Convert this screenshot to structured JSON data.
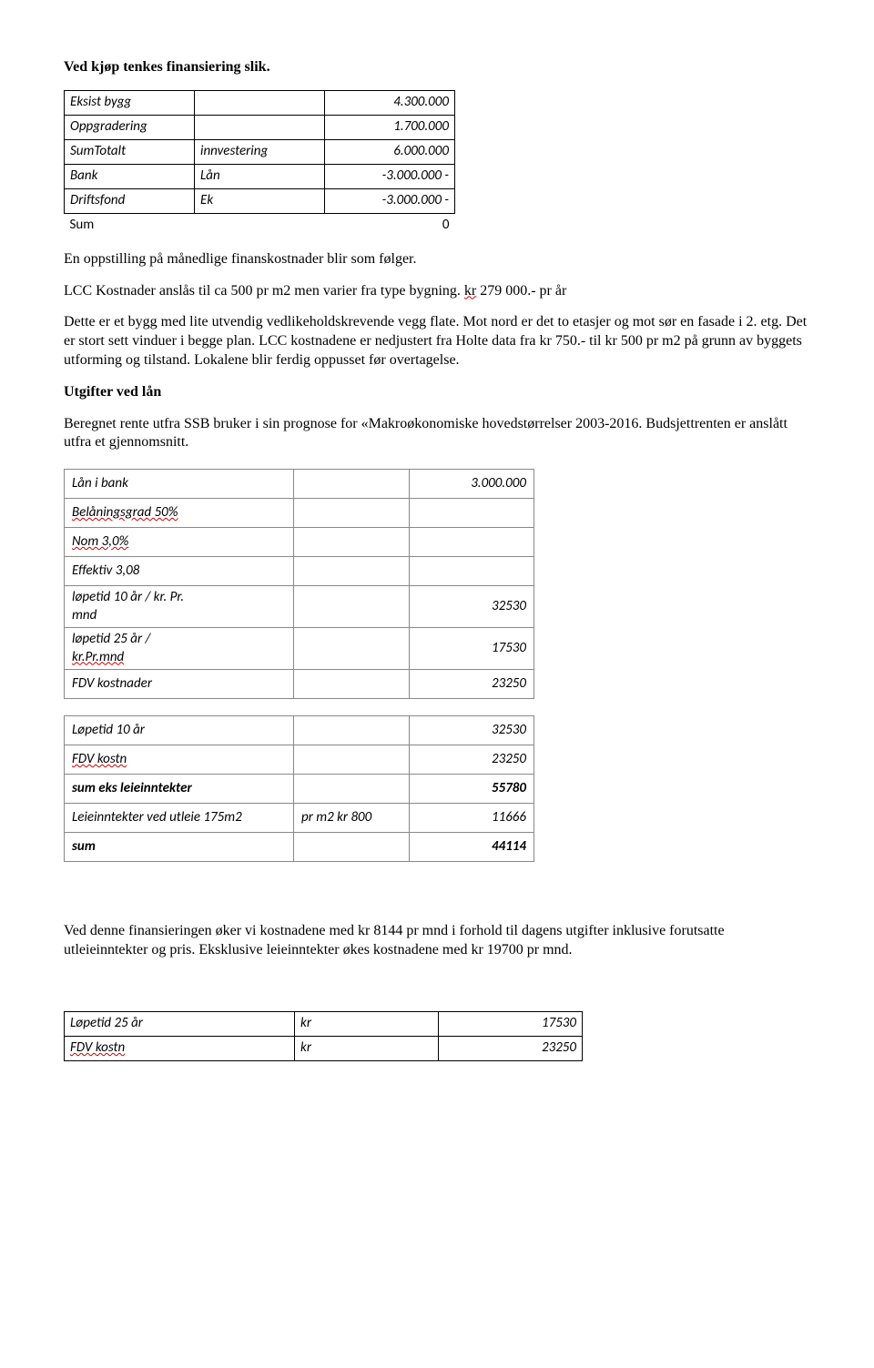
{
  "heading1": "Ved kjøp tenkes finansiering slik.",
  "financing": {
    "rows": [
      {
        "c0": "Eksist bygg",
        "c1": "",
        "c2": "4.300.000",
        "italic": true
      },
      {
        "c0": "Oppgradering",
        "c1": "",
        "c2": "1.700.000",
        "italic": true
      },
      {
        "c0": "SumTotalt",
        "c1": "innvestering",
        "c2": "6.000.000",
        "italic": true
      },
      {
        "c0": "Bank",
        "c1": "Lån",
        "c2": "-3.000.000 -",
        "italic": true
      },
      {
        "c0": "Driftsfond",
        "c1": "Ek",
        "c2": "-3.000.000 -",
        "italic": true
      }
    ],
    "sum_row": {
      "c0": "Sum",
      "c1": "",
      "c2": "0"
    }
  },
  "para1": "En oppstilling på månedlige finanskostnader blir som følger.",
  "para2_pre": "LCC Kostnader anslås til ca 500 pr m2 men varier fra type bygning. ",
  "para2_wavy": "kr",
  "para2_post": " 279 000.- pr år",
  "para3": "Dette er et bygg med lite utvendig vedlikeholdskrevende vegg flate. Mot nord er det to etasjer og mot sør en fasade i  2. etg. Det er stort sett vinduer i begge plan. LCC kostnadene er nedjustert fra Holte data fra kr 750.- til kr 500 pr m2 på grunn av byggets utforming og tilstand. Lokalene blir ferdig oppusset før overtagelse.",
  "heading2": "Utgifter ved lån",
  "para4_pre": "Beregnet rente utfra ",
  "para4_mid": "SSB bruker i sin prognose for «Makroøkonomiske hovedstørrelser 2003-2016. Budsjettrenten er anslått utfra et gjennomsnitt.",
  "tblA": {
    "rows": [
      {
        "c0": "Lån i bank",
        "c1": "",
        "c2": "3.000.000",
        "wavy0": false,
        "wavy2": false,
        "italic": true
      },
      {
        "c0": "Belåningsgrad 50%",
        "c1": "",
        "c2": "",
        "wavy0": true,
        "italic": true
      },
      {
        "c0": "Nom 3,0%",
        "c1": "",
        "c2": "",
        "wavy0": true,
        "italic": true
      },
      {
        "c0": "Effektiv 3,08",
        "c1": "",
        "c2": "",
        "wavy0": false,
        "italic": true
      },
      {
        "c0a": "løpetid 10 år / kr. Pr.",
        "c0b": "mnd",
        "c1": "",
        "c2": "32530",
        "twoLine": true,
        "italic": true
      },
      {
        "c0a": "løpetid 25 år /",
        "c0b": "kr.Pr.mnd",
        "c1": "",
        "c2": "17530",
        "twoLine": true,
        "wavy0b": true,
        "italic": true
      },
      {
        "c0": "FDV kostnader",
        "c1": "",
        "c2": "23250",
        "italic": true
      }
    ]
  },
  "tblB": {
    "rows": [
      {
        "c0": "Løpetid 10 år",
        "c1": "",
        "c2": "32530",
        "italic": true
      },
      {
        "c0": "FDV kostn",
        "c1": "",
        "c2": "23250",
        "wavy0": true,
        "italic": true
      },
      {
        "c0": "sum eks leieinntekter",
        "c1": "",
        "c2": "55780",
        "bold": true,
        "italic": true
      },
      {
        "c0": "Leieinntekter ved utleie 175m2",
        "c1": "pr m2 kr 800",
        "c2": "11666",
        "italic": true
      },
      {
        "c0": "sum",
        "c1": "",
        "c2": "44114",
        "bold": true,
        "italic": true
      }
    ]
  },
  "para5": "Ved denne finansieringen øker vi kostnadene med kr 8144 pr mnd i forhold til dagens utgifter inklusive forutsatte utleieinntekter og pris. Eksklusive leieinntekter økes kostnadene med kr 19700 pr mnd.",
  "tblC": {
    "rows": [
      {
        "c0": "Løpetid 25 år",
        "c1": "kr",
        "c2": "17530"
      },
      {
        "c0": "FDV kostn",
        "c1": "kr",
        "c2": "23250",
        "wavy0": true
      }
    ]
  },
  "colwidths": {
    "financing": [
      130,
      130,
      130
    ],
    "tblA": [
      235,
      110,
      120
    ],
    "tblB": [
      235,
      110,
      120
    ],
    "tblC": [
      240,
      145,
      145
    ]
  }
}
